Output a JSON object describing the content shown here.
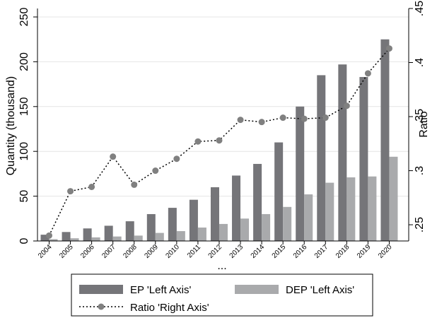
{
  "chart_data": {
    "type": "bar",
    "categories": [
      "2004",
      "2005",
      "2006",
      "2007",
      "2008",
      "2009",
      "2010",
      "2011",
      "2012",
      "2013",
      "2014",
      "2015",
      "2016",
      "2017",
      "2018",
      "2019",
      "2020"
    ],
    "series": [
      {
        "name": "EP 'Left Axis'",
        "axis": "left",
        "kind": "bar",
        "color": "#757579",
        "values": [
          7,
          10,
          14,
          17,
          22,
          30,
          37,
          46,
          60,
          73,
          86,
          110,
          150,
          185,
          197,
          183,
          225
        ]
      },
      {
        "name": "DEP 'Left Axis'",
        "axis": "left",
        "kind": "bar",
        "color": "#a9aaac",
        "values": [
          2,
          3,
          4,
          5,
          6,
          9,
          11,
          15,
          19,
          25,
          30,
          38,
          52,
          65,
          71,
          72,
          94
        ]
      },
      {
        "name": "Ratio 'Right Axis'",
        "axis": "right",
        "kind": "line",
        "style": "dotted",
        "marker": "circle",
        "color": "#808080",
        "values": [
          0.24,
          0.281,
          0.285,
          0.313,
          0.287,
          0.3,
          0.311,
          0.327,
          0.328,
          0.347,
          0.345,
          0.349,
          0.348,
          0.349,
          0.36,
          0.39,
          0.413
        ]
      }
    ],
    "xlabel": "...",
    "ylabel_left": "Quantity (thousand)",
    "ylabel_right": "Ratio",
    "ylim_left": [
      0,
      250
    ],
    "ylim_right": [
      0.235,
      0.45
    ],
    "yticks_left": [
      "0",
      "50",
      "100",
      "150",
      "200",
      "250"
    ],
    "yticks_right": [
      ".25",
      ".3",
      ".35",
      ".4",
      ".45"
    ],
    "yticks_right_values": [
      0.25,
      0.3,
      0.35,
      0.4,
      0.45
    ],
    "grid": "horizontal",
    "legend_position": "bottom"
  }
}
